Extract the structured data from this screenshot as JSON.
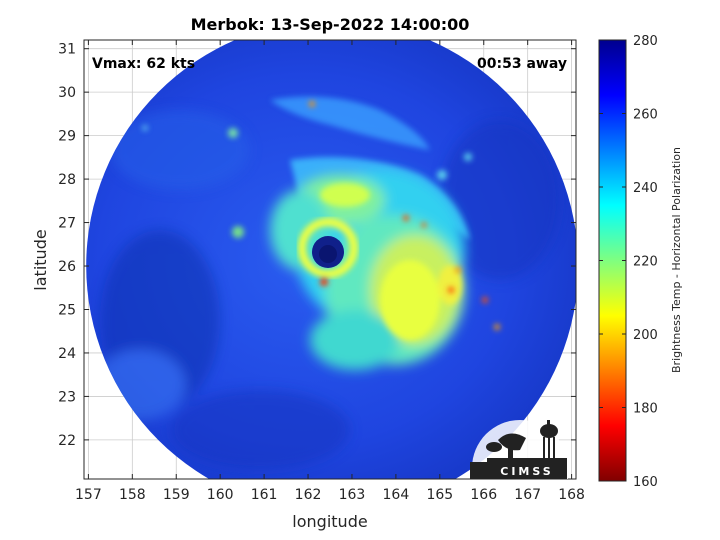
{
  "chart_data": {
    "type": "heatmap",
    "title": "Merbok: 13-Sep-2022 14:00:00",
    "xlabel": "longitude",
    "ylabel": "latitude",
    "xlim": [
      156.9,
      168.1
    ],
    "ylim": [
      21.1,
      31.2
    ],
    "xticks": [
      157,
      158,
      159,
      160,
      161,
      162,
      163,
      164,
      165,
      166,
      167,
      168
    ],
    "yticks": [
      22,
      23,
      24,
      25,
      26,
      27,
      28,
      29,
      30,
      31
    ],
    "grid": true,
    "annotations": {
      "vmax": "Vmax: 62 kts",
      "time_away": "00:53 away"
    },
    "storm_center": {
      "lon": 162.5,
      "lat": 25.9
    },
    "swath_center": {
      "lon": 162.55,
      "lat": 26.0
    },
    "colorbar": {
      "label": "Brightness Temp - Horizontal Polarization",
      "min": 160,
      "max": 280,
      "ticks": [
        160,
        180,
        200,
        220,
        240,
        260,
        280
      ],
      "colormap": "jet"
    },
    "logo": "CIMSS"
  },
  "colors": {
    "outside": "#ffffff",
    "background_field": "#1f45e0",
    "grid": "#cccccc"
  }
}
